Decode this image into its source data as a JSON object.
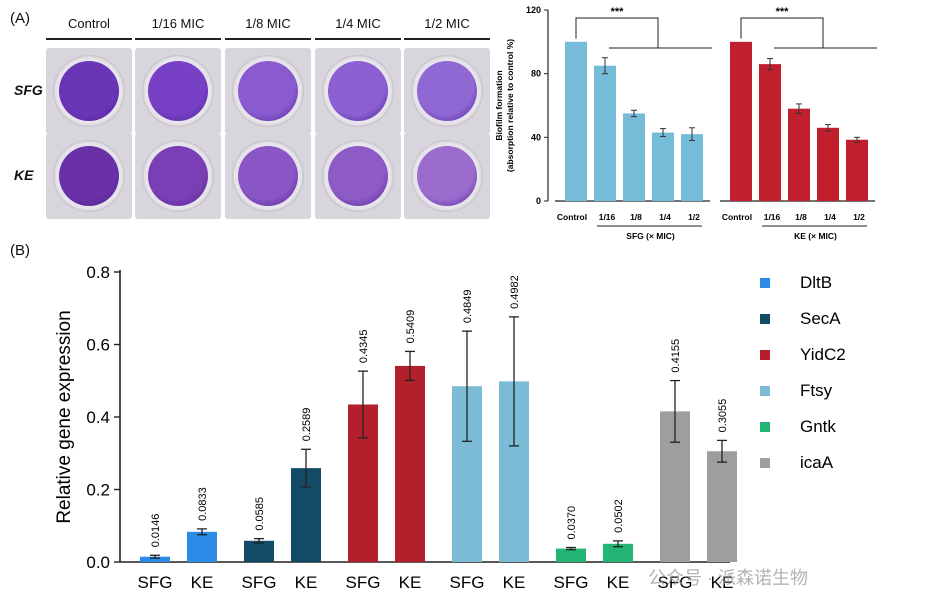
{
  "panel_a": {
    "label": "(A)",
    "columns": [
      "Control",
      "1/16 MIC",
      "1/8 MIC",
      "1/4 MIC",
      "1/2 MIC"
    ],
    "rows": [
      {
        "label": "SFG",
        "stain_colors": [
          "#6b35b8",
          "#7840c4",
          "#8a5bd0",
          "#8c5fd2",
          "#9068d4"
        ]
      },
      {
        "label": "KE",
        "stain_colors": [
          "#6a30a8",
          "#7a3fb4",
          "#8a55c4",
          "#8d5ac6",
          "#9b6cce"
        ]
      }
    ]
  },
  "panel_b_label": "(B)",
  "watermark": "公众号 · 派森诺生物",
  "chart_data": [
    {
      "type": "bar",
      "ylabel_lines": [
        "Biofilm formation",
        "(absorption relative to control %)"
      ],
      "ylim": [
        0,
        120
      ],
      "yticks": [
        0,
        40,
        80,
        120
      ],
      "groups": [
        {
          "name": "SFG (× MIC)",
          "color": "#74bcd8",
          "categories": [
            "Control",
            "1/16",
            "1/8",
            "1/4",
            "1/2"
          ],
          "values": [
            100,
            85,
            55,
            43,
            42
          ],
          "errors": [
            0,
            5,
            2,
            2.5,
            4
          ]
        },
        {
          "name": "KE (× MIC)",
          "color": "#c0202e",
          "categories": [
            "Control",
            "1/16",
            "1/8",
            "1/4",
            "1/2"
          ],
          "values": [
            100,
            86,
            58,
            46,
            38.5
          ],
          "errors": [
            0,
            3.5,
            3,
            2,
            1.5
          ]
        }
      ],
      "significance": "***",
      "grid": false
    },
    {
      "type": "bar",
      "ylabel": "Relative gene expression",
      "ylim": [
        0,
        0.8
      ],
      "yticks": [
        "0.0",
        "0.2",
        "0.4",
        "0.6",
        "0.8"
      ],
      "categories": [
        "SFG",
        "KE"
      ],
      "series": [
        {
          "name": "DltB",
          "color": "#2b8be6",
          "values": [
            0.0146,
            0.0833
          ],
          "errors": [
            0.004,
            0.008
          ],
          "labels": [
            "0.0146",
            "0.0833"
          ]
        },
        {
          "name": "SecA",
          "color": "#134a66",
          "values": [
            0.0585,
            0.2589
          ],
          "errors": [
            0.006,
            0.052
          ],
          "labels": [
            "0.0585",
            "0.2589"
          ]
        },
        {
          "name": "YidC2",
          "color": "#b3202c",
          "values": [
            0.4345,
            0.5409
          ],
          "errors": [
            0.092,
            0.04
          ],
          "labels": [
            "0.4345",
            "0.5409"
          ]
        },
        {
          "name": "Ftsy",
          "color": "#7bbbd6",
          "values": [
            0.4849,
            0.4982
          ],
          "errors": [
            0.152,
            0.178
          ],
          "labels": [
            "0.4849",
            "0.4982"
          ]
        },
        {
          "name": "Gntk",
          "color": "#22b574",
          "values": [
            0.037,
            0.0502
          ],
          "errors": [
            0.003,
            0.008
          ],
          "labels": [
            "0.0370",
            "0.0502"
          ]
        },
        {
          "name": "icaA",
          "color": "#9e9e9e",
          "values": [
            0.4155,
            0.3055
          ],
          "errors": [
            0.085,
            0.03
          ],
          "labels": [
            "0.4155",
            "0.3055"
          ]
        }
      ],
      "legend_position": "right",
      "grid": false
    }
  ]
}
